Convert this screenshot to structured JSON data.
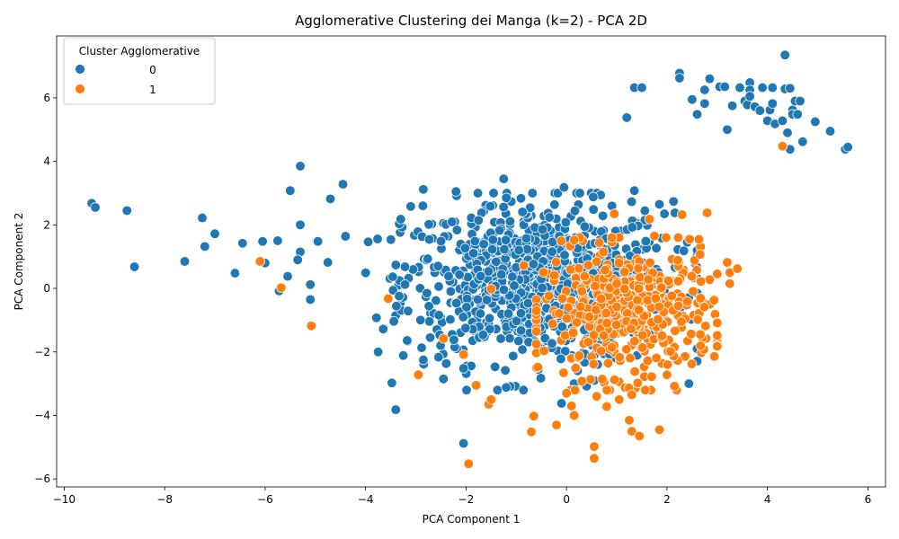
{
  "chart_data": {
    "type": "scatter",
    "title": "Agglomerative Clustering dei Manga (k=2) - PCA 2D",
    "xlabel": "PCA Component 1",
    "ylabel": "PCA Component 2",
    "xlim": [
      -10.15,
      6.35
    ],
    "ylim": [
      -6.25,
      7.95
    ],
    "xticks": [
      -10,
      -8,
      -6,
      -4,
      -2,
      0,
      2,
      4,
      6
    ],
    "yticks": [
      -6,
      -4,
      -2,
      0,
      2,
      4,
      6
    ],
    "grid": false,
    "legend": {
      "title": "Cluster Agglomerative",
      "placement": "top-left"
    },
    "series": [
      {
        "name": "0",
        "color": "#1f77b4",
        "outliers": [
          [
            -9.45,
            2.68
          ],
          [
            -9.38,
            2.55
          ],
          [
            -8.75,
            2.45
          ],
          [
            -8.6,
            0.68
          ],
          [
            -7.6,
            0.85
          ],
          [
            -7.25,
            2.22
          ],
          [
            -7.2,
            1.32
          ],
          [
            -7.0,
            1.72
          ],
          [
            -6.45,
            1.42
          ],
          [
            -6.6,
            0.48
          ],
          [
            -6.05,
            1.48
          ],
          [
            -6.0,
            0.8
          ],
          [
            -5.75,
            1.5
          ],
          [
            -5.72,
            -0.08
          ],
          [
            -5.55,
            0.38
          ],
          [
            -5.5,
            3.08
          ],
          [
            -5.3,
            3.85
          ],
          [
            -5.3,
            2.0
          ],
          [
            -5.3,
            1.15
          ],
          [
            -5.35,
            0.9
          ],
          [
            -5.1,
            0.12
          ],
          [
            -5.1,
            -0.35
          ],
          [
            -4.95,
            1.48
          ],
          [
            -4.75,
            0.82
          ],
          [
            -4.7,
            2.82
          ],
          [
            -4.45,
            3.28
          ],
          [
            -3.75,
            -2.0
          ],
          [
            -3.4,
            -3.82
          ],
          [
            -2.05,
            -4.88
          ],
          [
            -3.3,
            2.18
          ],
          [
            -3.1,
            2.58
          ],
          [
            -2.85,
            3.12
          ],
          [
            -2.2,
            3.05
          ],
          [
            -1.25,
            3.45
          ],
          [
            -0.05,
            3.18
          ],
          [
            1.35,
            3.08
          ],
          [
            0.55,
            -2.9
          ],
          [
            0.15,
            -3.0
          ],
          [
            0.4,
            -3.08
          ],
          [
            -0.1,
            -3.62
          ],
          [
            -1.2,
            -3.12
          ],
          [
            -2.85,
            -2.25
          ],
          [
            -2.45,
            -2.85
          ],
          [
            -2.05,
            -2.52
          ],
          [
            1.85,
            2.65
          ],
          [
            1.95,
            2.35
          ],
          [
            1.2,
            5.38
          ],
          [
            1.35,
            6.32
          ],
          [
            1.5,
            6.32
          ],
          [
            2.25,
            6.78
          ],
          [
            2.25,
            6.62
          ],
          [
            2.5,
            5.95
          ],
          [
            2.6,
            5.48
          ],
          [
            2.75,
            6.25
          ],
          [
            2.75,
            5.82
          ],
          [
            2.85,
            6.6
          ],
          [
            3.05,
            6.35
          ],
          [
            3.15,
            6.35
          ],
          [
            3.2,
            5.0
          ],
          [
            3.3,
            5.75
          ],
          [
            3.45,
            6.32
          ],
          [
            3.55,
            5.9
          ],
          [
            3.6,
            5.78
          ],
          [
            3.65,
            6.48
          ],
          [
            3.65,
            6.25
          ],
          [
            3.65,
            6.05
          ],
          [
            3.75,
            5.72
          ],
          [
            3.85,
            5.6
          ],
          [
            3.9,
            6.32
          ],
          [
            4.0,
            5.28
          ],
          [
            4.05,
            5.62
          ],
          [
            4.1,
            6.32
          ],
          [
            4.1,
            5.82
          ],
          [
            4.15,
            5.18
          ],
          [
            4.3,
            5.28
          ],
          [
            4.35,
            7.35
          ],
          [
            4.35,
            6.28
          ],
          [
            4.45,
            6.3
          ],
          [
            4.4,
            4.9
          ],
          [
            4.45,
            4.38
          ],
          [
            4.5,
            5.62
          ],
          [
            4.5,
            5.48
          ],
          [
            4.55,
            5.9
          ],
          [
            4.6,
            5.48
          ],
          [
            4.65,
            5.9
          ],
          [
            4.7,
            4.62
          ],
          [
            4.95,
            5.25
          ],
          [
            5.25,
            4.95
          ],
          [
            5.55,
            4.38
          ],
          [
            5.6,
            4.45
          ]
        ]
      },
      {
        "name": "1",
        "color": "#ff7f0e",
        "outliers": [
          [
            -6.1,
            0.85
          ],
          [
            -5.68,
            0.02
          ],
          [
            -5.08,
            -1.18
          ],
          [
            -3.55,
            -0.32
          ],
          [
            -2.95,
            -2.72
          ],
          [
            -2.45,
            -1.58
          ],
          [
            -2.05,
            -2.08
          ],
          [
            -1.95,
            -5.52
          ],
          [
            -1.8,
            -3.05
          ],
          [
            -1.55,
            -3.65
          ],
          [
            -1.5,
            -3.5
          ],
          [
            -0.65,
            -4.02
          ],
          [
            -0.7,
            -4.52
          ],
          [
            -0.2,
            -4.3
          ],
          [
            0.0,
            -3.3
          ],
          [
            0.1,
            -3.7
          ],
          [
            0.15,
            -4.0
          ],
          [
            0.55,
            -4.98
          ],
          [
            0.55,
            -5.35
          ],
          [
            0.6,
            -3.4
          ],
          [
            0.8,
            -3.72
          ],
          [
            1.05,
            -3.5
          ],
          [
            1.25,
            -4.15
          ],
          [
            1.3,
            -4.5
          ],
          [
            1.3,
            -3.35
          ],
          [
            1.45,
            -4.65
          ],
          [
            1.85,
            -4.45
          ],
          [
            2.0,
            -2.72
          ],
          [
            2.15,
            -3.08
          ],
          [
            2.3,
            2.32
          ],
          [
            2.8,
            2.38
          ],
          [
            3.2,
            0.82
          ],
          [
            3.25,
            0.5
          ],
          [
            3.25,
            0.15
          ],
          [
            3.4,
            0.62
          ],
          [
            2.85,
            0.28
          ],
          [
            0.15,
            1.52
          ],
          [
            1.65,
            2.18
          ],
          [
            1.75,
            1.65
          ],
          [
            4.3,
            4.48
          ],
          [
            -1.5,
            -0.02
          ],
          [
            -0.85,
            0.72
          ],
          [
            -0.6,
            -1.75
          ],
          [
            0.95,
            2.35
          ],
          [
            2.45,
            1.55
          ]
        ]
      }
    ]
  }
}
